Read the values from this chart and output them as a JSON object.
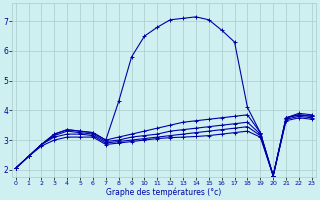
{
  "xlabel": "Graphe des températures (°c)",
  "background_color": "#cff0f0",
  "grid_color": "#aacccc",
  "line_color": "#0000aa",
  "x_ticks": [
    0,
    1,
    2,
    3,
    4,
    5,
    6,
    7,
    8,
    9,
    10,
    11,
    12,
    13,
    14,
    15,
    16,
    17,
    18,
    19,
    20,
    21,
    22,
    23
  ],
  "y_ticks": [
    2,
    3,
    4,
    5,
    6,
    7
  ],
  "xlim": [
    -0.3,
    23.3
  ],
  "ylim": [
    1.75,
    7.6
  ],
  "lines": [
    {
      "x": [
        0,
        1,
        2,
        3,
        4,
        5,
        6,
        7,
        8,
        9,
        10,
        11,
        12,
        13,
        14,
        15,
        16,
        17,
        18,
        19,
        20,
        21,
        22,
        23
      ],
      "y": [
        2.05,
        2.45,
        2.85,
        3.2,
        3.35,
        3.3,
        3.25,
        3.0,
        4.3,
        5.8,
        6.5,
        6.8,
        7.05,
        7.1,
        7.15,
        7.05,
        6.7,
        6.3,
        4.1,
        3.25,
        1.8,
        3.75,
        3.9,
        3.85
      ]
    },
    {
      "x": [
        0,
        1,
        2,
        3,
        4,
        5,
        6,
        7,
        8,
        9,
        10,
        11,
        12,
        13,
        14,
        15,
        16,
        17,
        18,
        19,
        20,
        21,
        22,
        23
      ],
      "y": [
        2.05,
        2.45,
        2.85,
        3.2,
        3.35,
        3.3,
        3.25,
        3.0,
        3.1,
        3.2,
        3.3,
        3.4,
        3.5,
        3.6,
        3.65,
        3.7,
        3.75,
        3.8,
        3.85,
        3.25,
        1.8,
        3.75,
        3.85,
        3.8
      ]
    },
    {
      "x": [
        0,
        1,
        2,
        3,
        4,
        5,
        6,
        7,
        8,
        9,
        10,
        11,
        12,
        13,
        14,
        15,
        16,
        17,
        18,
        19,
        20,
        21,
        22,
        23
      ],
      "y": [
        2.05,
        2.45,
        2.85,
        3.15,
        3.3,
        3.25,
        3.2,
        2.95,
        3.0,
        3.1,
        3.15,
        3.2,
        3.3,
        3.35,
        3.4,
        3.45,
        3.5,
        3.55,
        3.6,
        3.2,
        1.8,
        3.75,
        3.85,
        3.8
      ]
    },
    {
      "x": [
        0,
        1,
        2,
        3,
        4,
        5,
        6,
        7,
        8,
        9,
        10,
        11,
        12,
        13,
        14,
        15,
        16,
        17,
        18,
        19,
        20,
        21,
        22,
        23
      ],
      "y": [
        2.05,
        2.45,
        2.85,
        3.1,
        3.2,
        3.2,
        3.15,
        2.9,
        2.95,
        3.0,
        3.05,
        3.1,
        3.15,
        3.2,
        3.25,
        3.3,
        3.35,
        3.4,
        3.45,
        3.15,
        1.8,
        3.7,
        3.8,
        3.75
      ]
    },
    {
      "x": [
        0,
        1,
        2,
        3,
        4,
        5,
        6,
        7,
        8,
        9,
        10,
        11,
        12,
        13,
        14,
        15,
        16,
        17,
        18,
        19,
        20,
        21,
        22,
        23
      ],
      "y": [
        2.05,
        2.45,
        2.8,
        3.0,
        3.1,
        3.1,
        3.1,
        2.85,
        2.9,
        2.95,
        3.0,
        3.05,
        3.08,
        3.1,
        3.12,
        3.15,
        3.2,
        3.25,
        3.3,
        3.1,
        1.8,
        3.65,
        3.75,
        3.7
      ]
    }
  ]
}
